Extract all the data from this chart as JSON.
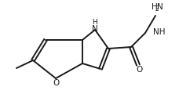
{
  "background": "#ffffff",
  "line_color": "#1a1a1a",
  "line_width": 1.4,
  "text_color": "#1a1a1a",
  "font_size": 7.0,
  "figsize": [
    2.42,
    1.2
  ],
  "dpi": 100,
  "xlim": [
    -1.0,
    11.0
  ],
  "ylim": [
    -0.8,
    5.2
  ]
}
